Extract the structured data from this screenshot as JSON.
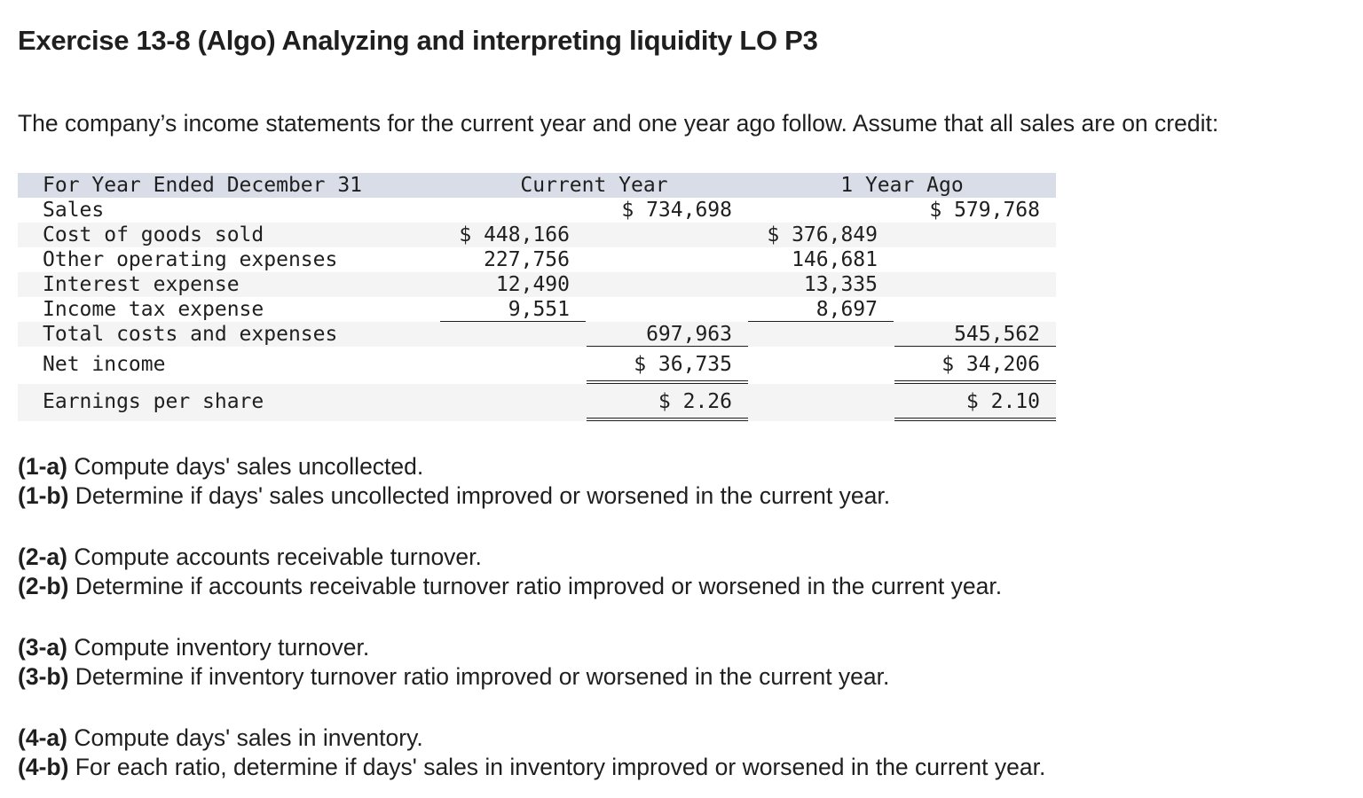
{
  "title": "Exercise 13-8 (Algo) Analyzing and interpreting liquidity LO P3",
  "intro": "The company’s income statements for the current year and one year ago follow. Assume that all sales are on credit:",
  "statement": {
    "header_label": "For Year Ended December 31",
    "header_current": "Current Year",
    "header_prior": "1 Year Ago",
    "sales_label": "Sales",
    "sales_current": "$ 734,698",
    "sales_prior": "$ 579,768",
    "cogs_label": "Cost of goods sold",
    "cogs_current": "$ 448,166",
    "cogs_prior": "$ 376,849",
    "opex_label": "Other operating expenses",
    "opex_current": "227,756",
    "opex_prior": "146,681",
    "interest_label": "Interest expense",
    "interest_current": "12,490",
    "interest_prior": "13,335",
    "tax_label": "Income tax expense",
    "tax_current": "9,551",
    "tax_prior": "8,697",
    "total_label": "Total costs and expenses",
    "total_current": "697,963",
    "total_prior": "545,562",
    "net_label": "Net income",
    "net_current": "$ 36,735",
    "net_prior": "$ 34,206",
    "eps_label": "Earnings per share",
    "eps_current": "$ 2.26",
    "eps_prior": "$ 2.10"
  },
  "questions": [
    {
      "tag": "(1-a)",
      "text": " Compute days' sales uncollected."
    },
    {
      "tag": "(1-b)",
      "text": " Determine if days' sales uncollected improved or worsened in the current year."
    },
    {
      "tag": "(2-a)",
      "text": " Compute accounts receivable turnover."
    },
    {
      "tag": "(2-b)",
      "text": " Determine if accounts receivable turnover ratio improved or worsened in the current year."
    },
    {
      "tag": "(3-a)",
      "text": " Compute inventory turnover."
    },
    {
      "tag": "(3-b)",
      "text": " Determine if inventory turnover ratio improved or worsened in the current year."
    },
    {
      "tag": "(4-a)",
      "text": " Compute days' sales in inventory."
    },
    {
      "tag": "(4-b)",
      "text": " For each ratio, determine if days' sales in inventory improved or worsened in the current year."
    }
  ]
}
